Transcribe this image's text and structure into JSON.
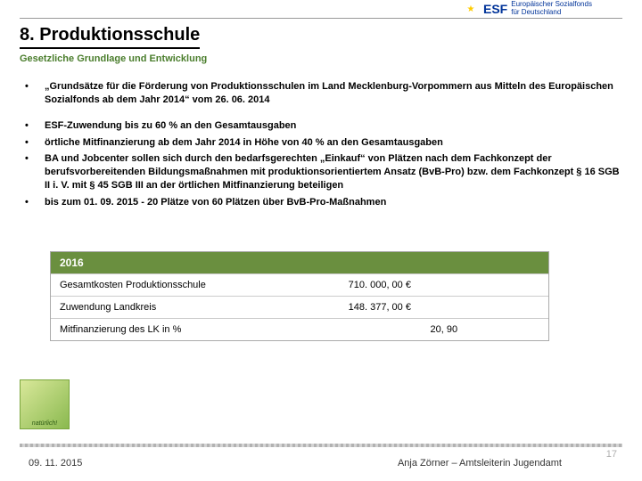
{
  "header": {
    "esf_label": "ESF",
    "esf_sub1": "Europäischer Sozialfonds",
    "esf_sub2": "für Deutschland"
  },
  "title": "8. Produktionsschule",
  "subtitle": "Gesetzliche Grundlage und Entwicklung",
  "bullets": [
    "„Grundsätze für die Förderung von Produktionsschulen im Land Mecklenburg-Vorpommern aus Mitteln des Europäischen Sozialfonds ab dem Jahr 2014“ vom 26. 06. 2014",
    "ESF-Zuwendung bis zu 60 % an den Gesamtausgaben",
    "örtliche Mitfinanzierung ab dem Jahr 2014 in Höhe von 40 % an den Gesamtausgaben",
    "BA und Jobcenter sollen sich durch den bedarfsgerechten „Einkauf“ von Plätzen nach dem Fachkonzept der berufsvorbereitenden Bildungsmaßnahmen mit produktionsorientiertem Ansatz (BvB-Pro) bzw. dem Fachkonzept § 16 SGB II i. V. mit § 45 SGB III an der örtlichen Mitfinanzierung beteiligen",
    "bis zum 01. 09. 2015 - 20 Plätze von 60 Plätzen über BvB-Pro-Maßnahmen"
  ],
  "table": {
    "header": "2016",
    "rows": [
      {
        "label": "Gesamtkosten Produktionsschule",
        "value": "710. 000, 00 €"
      },
      {
        "label": "Zuwendung Landkreis",
        "value": "148. 377, 00 €"
      },
      {
        "label": "Mitfinanzierung des LK in %",
        "value": "20, 90"
      }
    ]
  },
  "footer": {
    "logo_text": "natürlich!",
    "date": "09. 11. 2015",
    "author": "Anja Zörner – Amtsleiterin Jugendamt",
    "page": "17"
  },
  "colors": {
    "accent_green": "#4a7d2c",
    "table_header_bg": "#6a8f3f",
    "table_header_fg": "#ffffff",
    "page_num": "#b0b0b0"
  }
}
